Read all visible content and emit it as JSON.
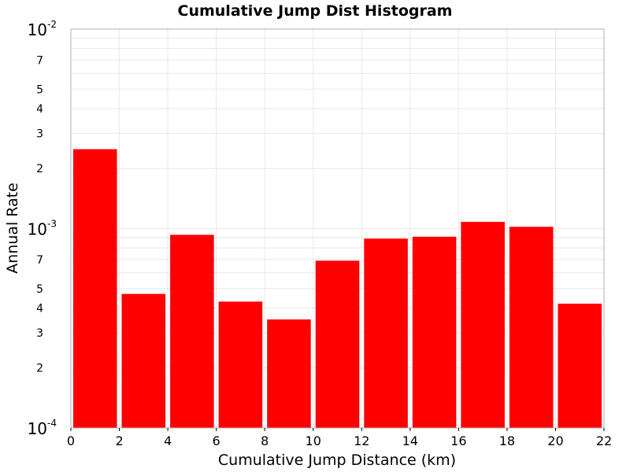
{
  "chart_data": {
    "type": "bar",
    "title": "Cumulative Jump Dist Histogram",
    "xlabel": "Cumulative Jump Distance (km)",
    "ylabel": "Annual Rate",
    "y_scale": "log",
    "xlim": [
      0,
      22
    ],
    "ylim": [
      0.0001,
      0.01
    ],
    "bar_color": "#ff0000",
    "grid": true,
    "x_ticks": [
      0,
      2,
      4,
      6,
      8,
      10,
      12,
      14,
      16,
      18,
      20,
      22
    ],
    "x_tick_labels": [
      "0",
      "2",
      "4",
      "6",
      "8",
      "10",
      "12",
      "14",
      "16",
      "18",
      "20",
      "22"
    ],
    "y_major_ticks": [
      {
        "value": 0.01,
        "base": "10",
        "exponent": "-2"
      },
      {
        "value": 0.001,
        "base": "10",
        "exponent": "-3"
      },
      {
        "value": 0.0001,
        "base": "10",
        "exponent": "-4"
      }
    ],
    "y_minor_labels": [
      {
        "value": 0.007,
        "label": "7"
      },
      {
        "value": 0.005,
        "label": "5"
      },
      {
        "value": 0.004,
        "label": "4"
      },
      {
        "value": 0.003,
        "label": "3"
      },
      {
        "value": 0.002,
        "label": "2"
      },
      {
        "value": 0.0007,
        "label": "7"
      },
      {
        "value": 0.0005,
        "label": "5"
      },
      {
        "value": 0.0004,
        "label": "4"
      },
      {
        "value": 0.0003,
        "label": "3"
      },
      {
        "value": 0.0002,
        "label": "2"
      }
    ],
    "bins": [
      {
        "x0": 0,
        "x1": 2,
        "value": 0.0025
      },
      {
        "x0": 2,
        "x1": 4,
        "value": 0.00047
      },
      {
        "x0": 4,
        "x1": 6,
        "value": 0.00093
      },
      {
        "x0": 6,
        "x1": 8,
        "value": 0.00043
      },
      {
        "x0": 8,
        "x1": 10,
        "value": 0.00035
      },
      {
        "x0": 10,
        "x1": 12,
        "value": 0.00069
      },
      {
        "x0": 12,
        "x1": 14,
        "value": 0.00089
      },
      {
        "x0": 14,
        "x1": 16,
        "value": 0.00091
      },
      {
        "x0": 16,
        "x1": 18,
        "value": 0.00108
      },
      {
        "x0": 18,
        "x1": 20,
        "value": 0.00102
      },
      {
        "x0": 20,
        "x1": 22,
        "value": 0.00042
      }
    ]
  }
}
